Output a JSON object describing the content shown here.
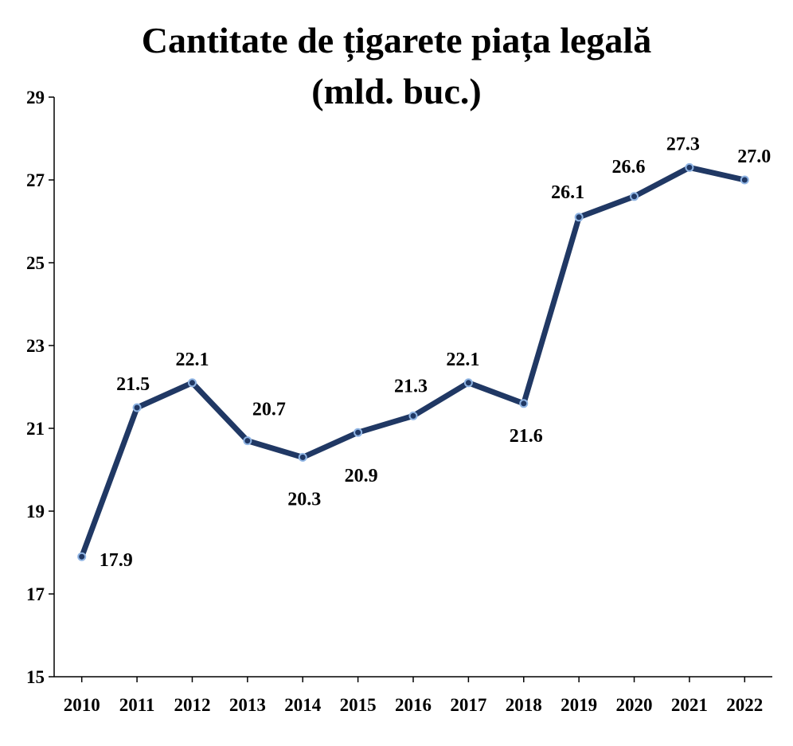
{
  "chart_data": {
    "type": "line",
    "title": "Cantitate de țigarete piața legală",
    "subtitle": "(mld. buc.)",
    "xlabel": "",
    "ylabel": "",
    "categories": [
      "2010",
      "2011",
      "2012",
      "2013",
      "2014",
      "2015",
      "2016",
      "2017",
      "2018",
      "2019",
      "2020",
      "2021",
      "2022"
    ],
    "values": [
      17.9,
      21.5,
      22.1,
      20.7,
      20.3,
      20.9,
      21.3,
      22.1,
      21.6,
      26.1,
      26.6,
      27.3,
      27.0
    ],
    "data_labels": [
      "17.9",
      "21.5",
      "22.1",
      "20.7",
      "20.3",
      "20.9",
      "21.3",
      "22.1",
      "21.6",
      "26.1",
      "26.6",
      "27.3",
      "27.0"
    ],
    "ylim": [
      15,
      29
    ],
    "yticks": [
      15,
      17,
      19,
      21,
      23,
      25,
      27,
      29
    ],
    "ytick_labels": [
      "15",
      "17",
      "19",
      "21",
      "23",
      "25",
      "27",
      "29"
    ],
    "grid": false,
    "legend": "none",
    "colors": {
      "line": "#203864",
      "marker_fill": "#203864",
      "marker_edge": "#8fb4e3"
    }
  }
}
